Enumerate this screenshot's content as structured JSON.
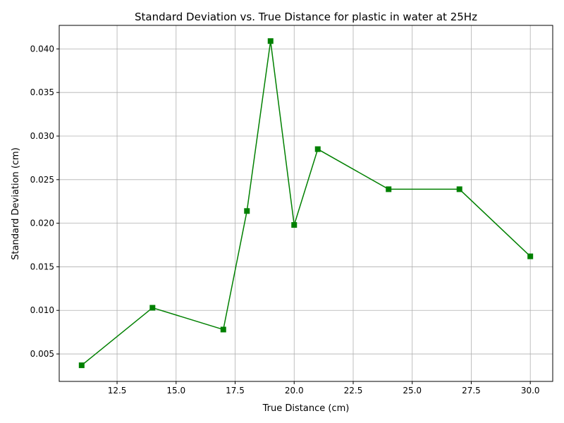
{
  "chart_data": {
    "type": "line",
    "title": "Standard Deviation vs. True Distance for plastic in water at 25Hz",
    "xlabel": "True Distance (cm)",
    "ylabel": "Standard Deviation (cm)",
    "x": [
      11,
      14,
      17,
      18,
      19,
      20,
      21,
      24,
      27,
      30
    ],
    "series": [
      {
        "values": [
          0.0037,
          0.0103,
          0.0078,
          0.0214,
          0.0409,
          0.0198,
          0.0285,
          0.0239,
          0.0239,
          0.0162
        ],
        "color": "#008000",
        "marker": "square"
      }
    ],
    "xlim": [
      10.05,
      30.95
    ],
    "ylim": [
      0.00185,
      0.0427
    ],
    "xticks": [
      "12.5",
      "15.0",
      "17.5",
      "20.0",
      "22.5",
      "25.0",
      "27.5",
      "30.0"
    ],
    "yticks": [
      "0.005",
      "0.010",
      "0.015",
      "0.020",
      "0.025",
      "0.030",
      "0.035",
      "0.040"
    ],
    "grid": true
  }
}
